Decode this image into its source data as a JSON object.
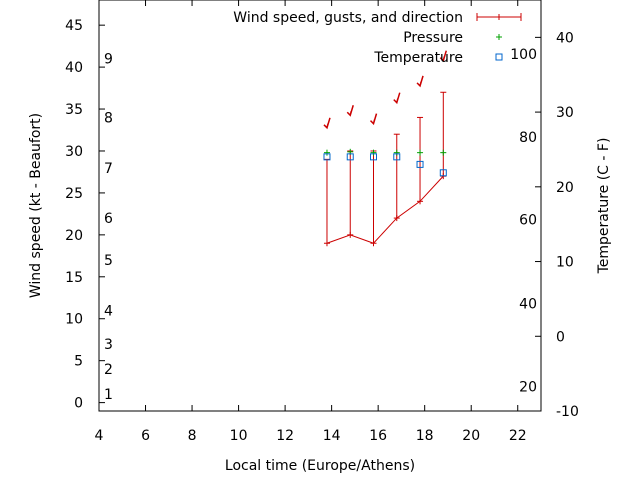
{
  "chart_data": {
    "type": "line",
    "title": "",
    "xlabel": "Local time (Europe/Athens)",
    "ylabel": "Wind speed (kt - Beaufort)",
    "y2label": "Temperature (C - F)",
    "xlim": [
      4,
      23
    ],
    "ylim": [
      -1,
      48
    ],
    "y2lim": [
      -10,
      45
    ],
    "x_ticks": [
      4,
      6,
      8,
      10,
      12,
      14,
      16,
      18,
      20,
      22
    ],
    "y_ticks": [
      0,
      5,
      10,
      15,
      20,
      25,
      30,
      35,
      40,
      45
    ],
    "y2_ticks": [
      -10,
      0,
      10,
      20,
      30,
      40
    ],
    "beaufort_labels": [
      {
        "label": "1",
        "kt": 1
      },
      {
        "label": "2",
        "kt": 4
      },
      {
        "label": "3",
        "kt": 7
      },
      {
        "label": "4",
        "kt": 11
      },
      {
        "label": "5",
        "kt": 17
      },
      {
        "label": "6",
        "kt": 22
      },
      {
        "label": "7",
        "kt": 28
      },
      {
        "label": "8",
        "kt": 34
      },
      {
        "label": "9",
        "kt": 41
      }
    ],
    "fahrenheit_labels": [
      {
        "label": "20",
        "c": -6.7
      },
      {
        "label": "40",
        "c": 4.4
      },
      {
        "label": "60",
        "c": 15.6
      },
      {
        "label": "80",
        "c": 26.7
      },
      {
        "label": "100",
        "c": 37.8
      }
    ],
    "legend_position": "top-right",
    "series": [
      {
        "name": "Wind speed, gusts, and direction",
        "color": "#cc0000",
        "x": [
          13.8,
          14.8,
          15.8,
          16.8,
          17.8,
          18.8
        ],
        "values": [
          19,
          20,
          19,
          22,
          24,
          27
        ],
        "gusts": [
          29,
          30,
          30,
          32,
          34,
          37
        ],
        "direction_arrows_kt": [
          33,
          34.5,
          33.5,
          36,
          38,
          41
        ]
      },
      {
        "name": "Pressure",
        "color": "#00a000",
        "x": [
          13.8,
          14.8,
          15.8,
          16.8,
          17.8,
          18.8
        ],
        "values": [
          29.8,
          29.9,
          29.8,
          29.8,
          29.8,
          29.8
        ]
      },
      {
        "name": "Temperature",
        "color": "#0066cc",
        "x": [
          13.8,
          14.8,
          15.8,
          16.8,
          17.8,
          18.8
        ],
        "values": [
          29.3,
          29.3,
          29.3,
          29.3,
          28.4,
          27.4
        ]
      }
    ]
  }
}
